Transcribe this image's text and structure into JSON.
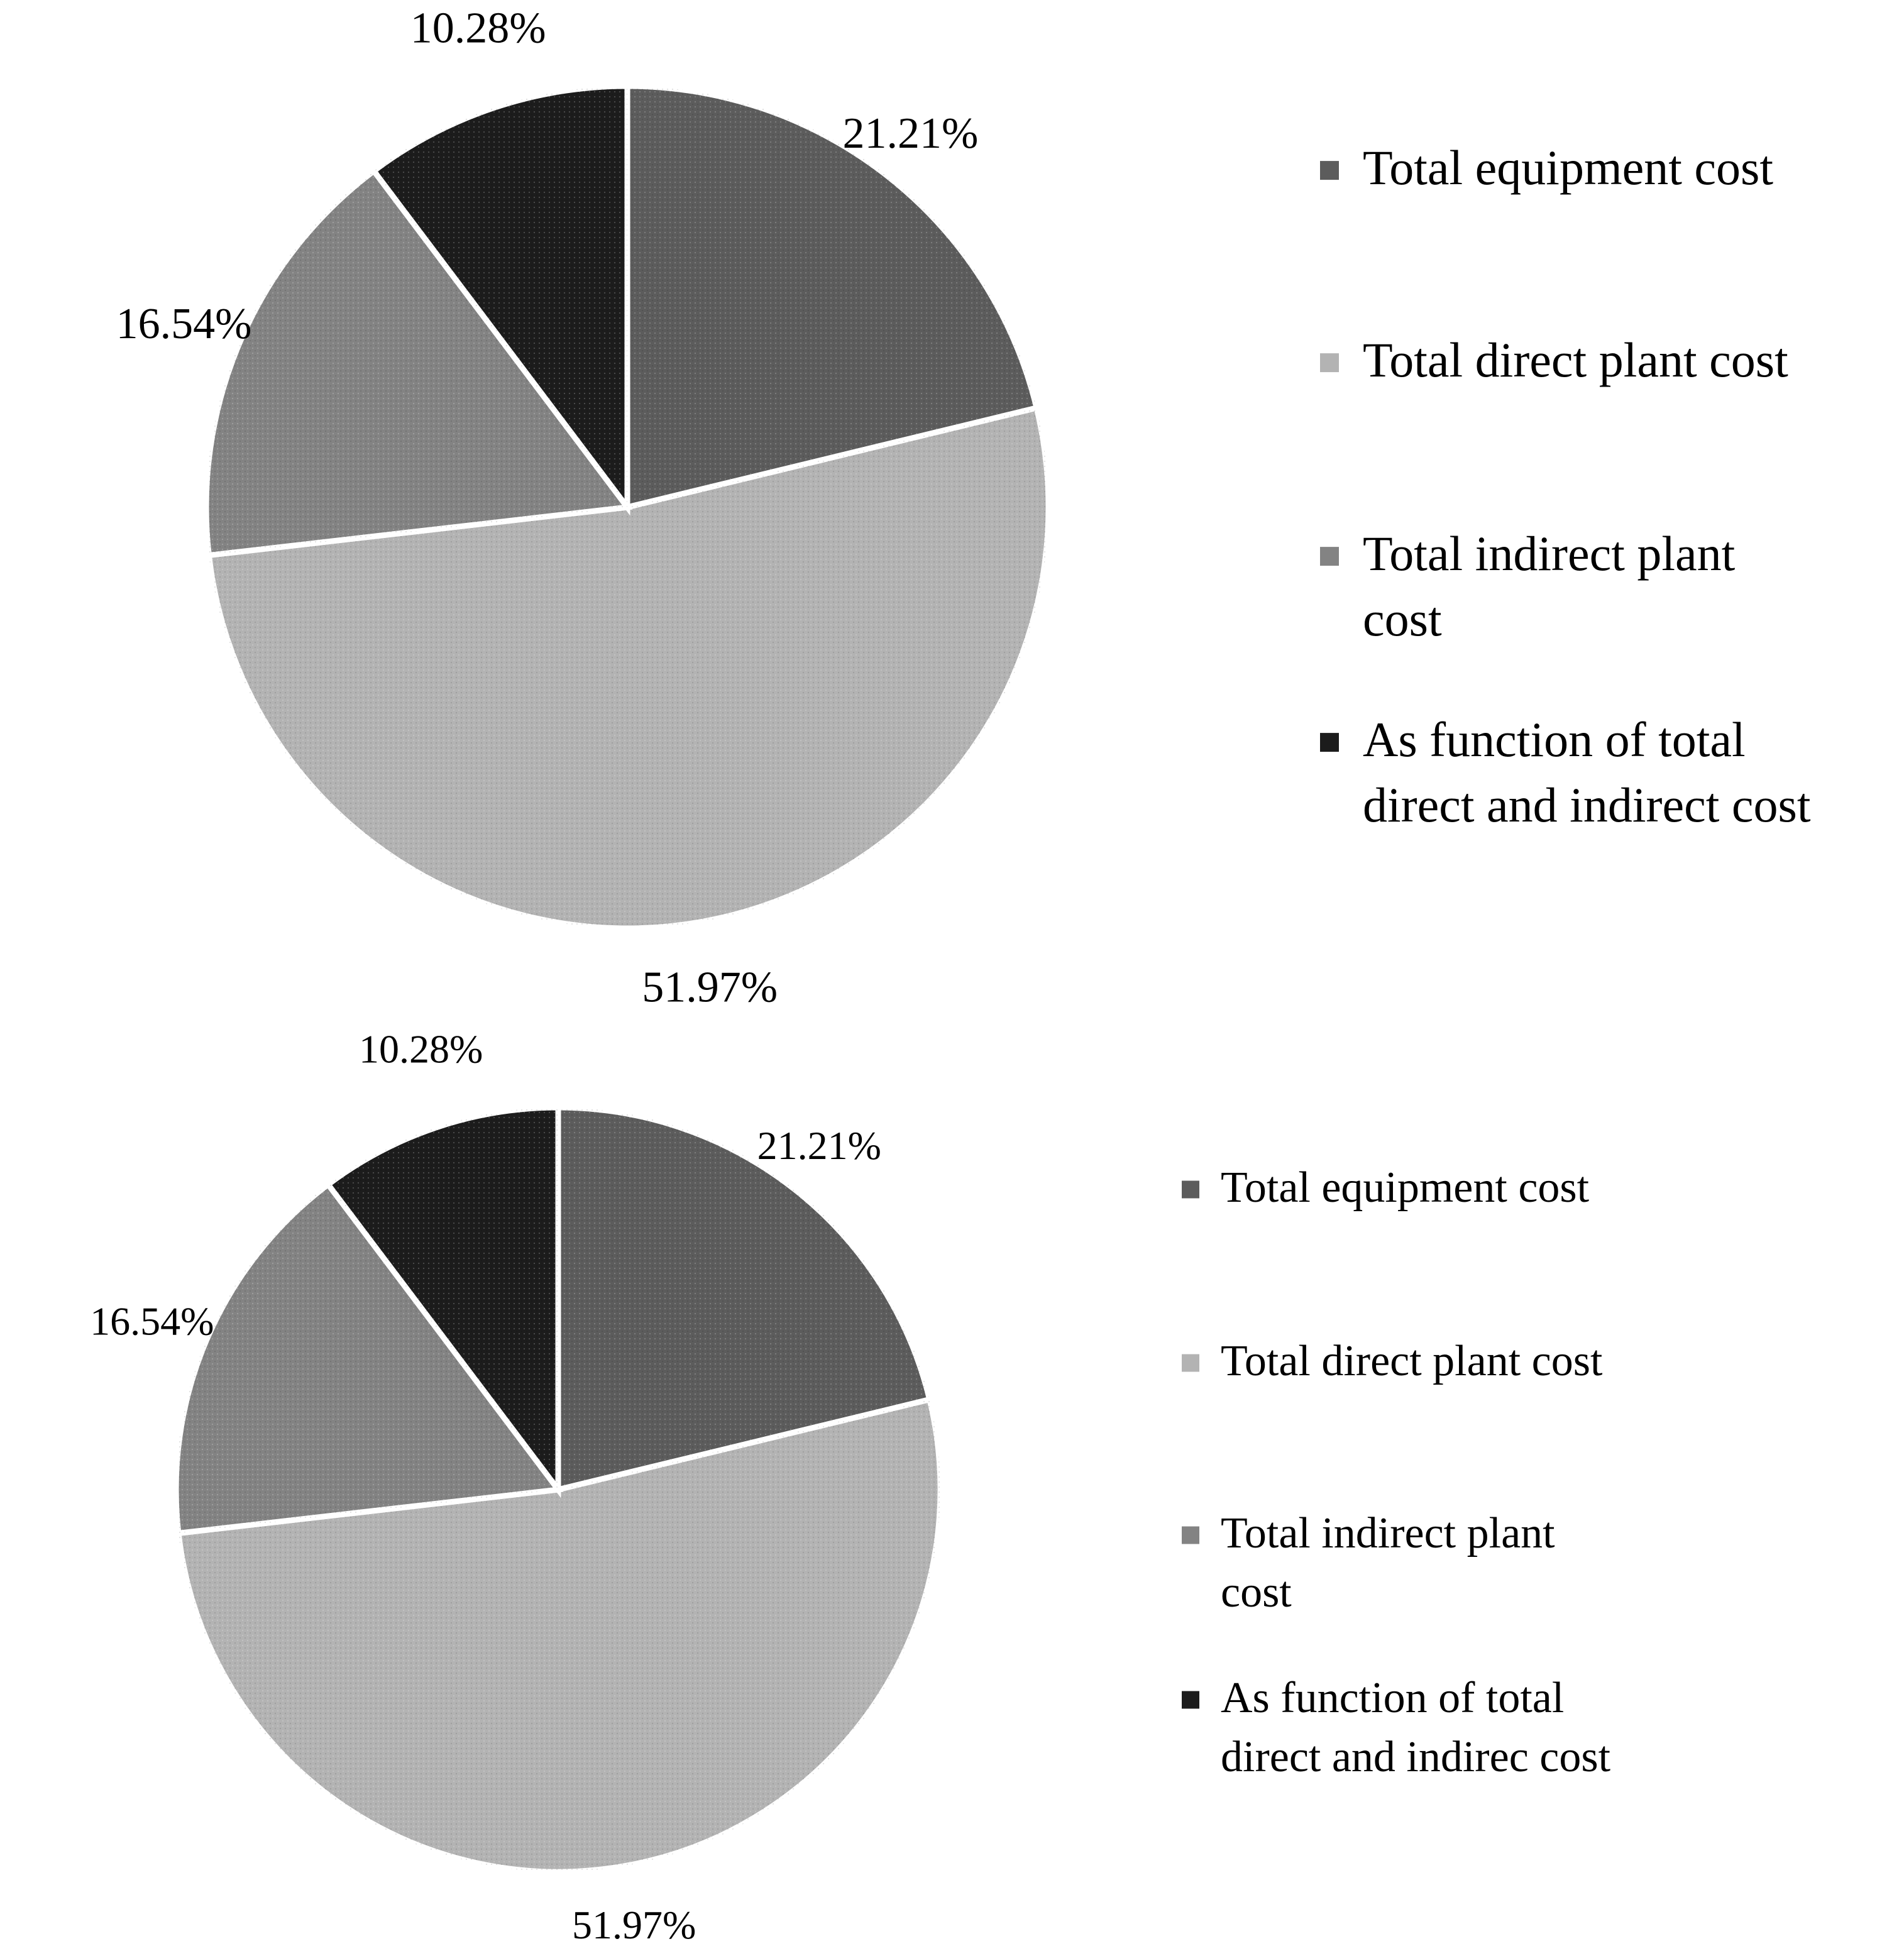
{
  "chart_data": [
    {
      "type": "pie",
      "title": "",
      "categories": [
        "Total equipment cost",
        "Total direct plant cost",
        "Total indirect plant cost",
        "As function of total direct and indirect cost"
      ],
      "values": [
        21.21,
        51.97,
        16.54,
        10.28
      ],
      "data_labels": [
        "21.21%",
        "51.97%",
        "16.54%",
        "10.28%"
      ],
      "colors": [
        "#5c5c5c",
        "#b3b3b3",
        "#838383",
        "#1c1c1c"
      ],
      "legend": {
        "placement": "right",
        "items": [
          [
            "Total equipment cost"
          ],
          [
            "Total direct plant cost"
          ],
          [
            "Total indirect plant",
            "cost"
          ],
          [
            "As function of total",
            "direct and indirect cost"
          ]
        ]
      }
    },
    {
      "type": "pie",
      "title": "",
      "categories": [
        "Total equipment cost",
        "Total direct plant cost",
        "Total indirect plant cost",
        "As function of total direct and indirec cost"
      ],
      "values": [
        21.21,
        51.97,
        16.54,
        10.28
      ],
      "data_labels": [
        "21.21%",
        "51.97%",
        "16.54%",
        "10.28%"
      ],
      "colors": [
        "#5c5c5c",
        "#b3b3b3",
        "#838383",
        "#1c1c1c"
      ],
      "legend": {
        "placement": "right",
        "items": [
          [
            "Total equipment cost"
          ],
          [
            "Total direct plant cost"
          ],
          [
            "Total indirect plant",
            "cost"
          ],
          [
            "As function of total",
            "direct and indirec cost"
          ]
        ]
      }
    }
  ]
}
